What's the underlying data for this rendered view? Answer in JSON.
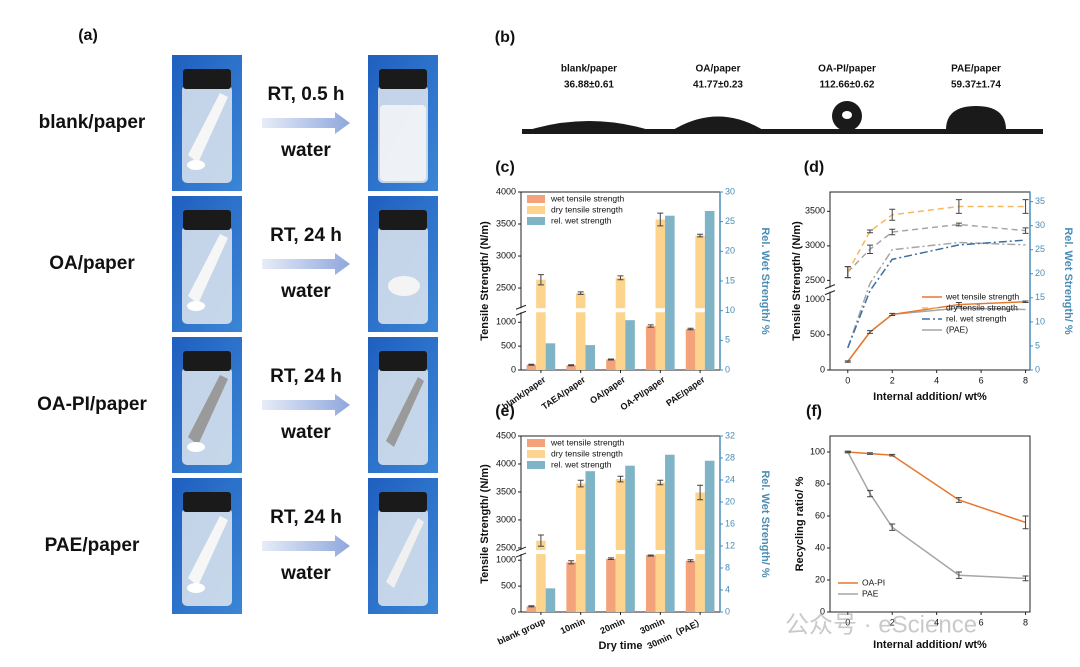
{
  "panel_a": {
    "label": "(a)",
    "rows": [
      {
        "sample": "blank/paper",
        "condition": "RT, 0.5 h",
        "medium": "water"
      },
      {
        "sample": "OA/paper",
        "condition": "RT, 24 h",
        "medium": "water"
      },
      {
        "sample": "OA-PI/paper",
        "condition": "RT, 24 h",
        "medium": "water"
      },
      {
        "sample": "PAE/paper",
        "condition": "RT, 24 h",
        "medium": "water"
      }
    ]
  },
  "panel_b": {
    "label": "(b)",
    "samples": [
      {
        "name": "blank/paper",
        "angle": "36.88±0.61"
      },
      {
        "name": "OA/paper",
        "angle": "41.77±0.23"
      },
      {
        "name": "OA-PI/paper",
        "angle": "112.66±0.62"
      },
      {
        "name": "PAE/paper",
        "angle": "59.37±1.74"
      }
    ]
  },
  "chart_data": [
    {
      "type": "bar",
      "label": "(c)",
      "ylabel": "Tensile Strength/ (N/m)",
      "y2label": "Rel. Wet Strength/ %",
      "categories": [
        "blank/paper",
        "TAEA/paper",
        "OA/paper",
        "OA-PI/paper",
        "PAE/paper"
      ],
      "series": [
        {
          "name": "wet tensile strength",
          "color": "#f4a27a",
          "values": [
            110,
            100,
            220,
            920,
            860
          ],
          "errors": [
            10,
            10,
            10,
            25,
            15
          ]
        },
        {
          "name": "dry tensile strength",
          "color": "#fdd48e",
          "values": [
            2630,
            2420,
            2660,
            3570,
            3320
          ],
          "errors": [
            80,
            20,
            30,
            100,
            20
          ]
        },
        {
          "name": "rel. wet strength",
          "color": "#7fb3c6",
          "values": [
            4.5,
            4.2,
            8.4,
            26,
            26.8
          ],
          "axis": "y2"
        }
      ],
      "ylim": [
        0,
        4000
      ],
      "ybreak": [
        1190,
        2200
      ],
      "yticks": [
        0,
        500,
        1000,
        2500,
        3000,
        3500,
        4000
      ],
      "y2lim": [
        0,
        30
      ],
      "y2ticks": [
        0,
        5,
        10,
        15,
        20,
        25,
        30
      ]
    },
    {
      "type": "line",
      "label": "(d)",
      "ylabel": "Tensile Strength/ (N/m)",
      "y2label": "Rel. Wet Strength/ %",
      "xlabel": "Internal addition/ wt%",
      "x": [
        0,
        1,
        2,
        5,
        8
      ],
      "series": [
        {
          "name": "wet tensile strength",
          "color": "#e8772e",
          "values": [
            120,
            540,
            790,
            930,
            970
          ],
          "errors": [
            10,
            20,
            15,
            30,
            10
          ]
        },
        {
          "name": "dry tensile strength",
          "color": "#f5b860",
          "dash": "6,4",
          "values": [
            2620,
            3210,
            3450,
            3570,
            3570
          ],
          "errors": [
            80,
            20,
            80,
            100,
            100
          ]
        },
        {
          "name": "rel. wet strength",
          "color": "#3a6ea5",
          "dash": "8,3,2,3",
          "axis": "y2",
          "values": [
            4.6,
            16.5,
            23,
            26,
            27
          ]
        }
      ],
      "pae": {
        "name": "(PAE)",
        "color": "#a6a6a6",
        "series": [
          {
            "values": [
              120,
              540,
              790,
              880,
              860
            ]
          },
          {
            "dash": "6,4",
            "values": [
              2620,
              2950,
              3200,
              3310,
              3220
            ],
            "errors": [
              80,
              60,
              40,
              20,
              40
            ]
          },
          {
            "dash": "8,3,2,3",
            "axis": "y2",
            "values": [
              4.6,
              18,
              25,
              26.5,
              26
            ]
          }
        ]
      },
      "xlim": [
        -0.8,
        8.2
      ],
      "xticks": [
        0,
        2,
        4,
        6,
        8
      ],
      "ylim": [
        0,
        3780
      ],
      "ybreak": [
        1100,
        2410
      ],
      "yticks": [
        0,
        500,
        1000,
        2500,
        3000,
        3500
      ],
      "y2lim": [
        0,
        37
      ],
      "y2ticks": [
        0,
        5,
        10,
        15,
        20,
        25,
        30,
        35
      ]
    },
    {
      "type": "bar",
      "label": "(e)",
      "ylabel": "Tensile Strength/ (N/m)",
      "y2label": "Rel. Wet Strength/ %",
      "xlabel": "Dry time",
      "categories": [
        "blank group",
        "10min",
        "20min",
        "30min",
        "30min（PAE）"
      ],
      "series": [
        {
          "name": "wet tensile strength",
          "color": "#f4a27a",
          "values": [
            110,
            960,
            1030,
            1100,
            990
          ],
          "errors": [
            10,
            30,
            15,
            20,
            20
          ]
        },
        {
          "name": "dry tensile strength",
          "color": "#fdd48e",
          "values": [
            2630,
            3650,
            3730,
            3670,
            3490
          ],
          "errors": [
            100,
            60,
            50,
            40,
            130
          ]
        },
        {
          "name": "rel. wet strength",
          "color": "#7fb3c6",
          "values": [
            4.3,
            25.6,
            26.6,
            28.6,
            27.5
          ],
          "axis": "y2"
        }
      ],
      "ylim": [
        0,
        4500
      ],
      "ybreak": [
        1100,
        2480
      ],
      "yticks": [
        0,
        500,
        1000,
        2500,
        3000,
        3500,
        4000,
        4500
      ],
      "y2lim": [
        0,
        32
      ],
      "y2ticks": [
        0,
        4,
        8,
        12,
        16,
        20,
        24,
        28,
        32
      ]
    },
    {
      "type": "line",
      "label": "(f)",
      "ylabel": "Recycling ratio/ %",
      "xlabel": "Internal addition/ wt%",
      "x": [
        0,
        1,
        2,
        5,
        8
      ],
      "series": [
        {
          "name": "OA-PI",
          "color": "#e8772e",
          "values": [
            100,
            99,
            98,
            70,
            56
          ],
          "errors": [
            0.5,
            0.5,
            0.5,
            1.5,
            4
          ]
        },
        {
          "name": "PAE",
          "color": "#a6a6a6",
          "values": [
            100,
            74,
            53,
            23,
            21
          ],
          "errors": [
            0.5,
            2,
            2,
            2,
            1.5
          ]
        }
      ],
      "xlim": [
        -0.8,
        8.2
      ],
      "xticks": [
        0,
        2,
        4,
        6,
        8
      ],
      "ylim": [
        0,
        110
      ],
      "yticks": [
        0,
        20,
        40,
        60,
        80,
        100
      ]
    }
  ],
  "watermark": "公众号 · eScience"
}
